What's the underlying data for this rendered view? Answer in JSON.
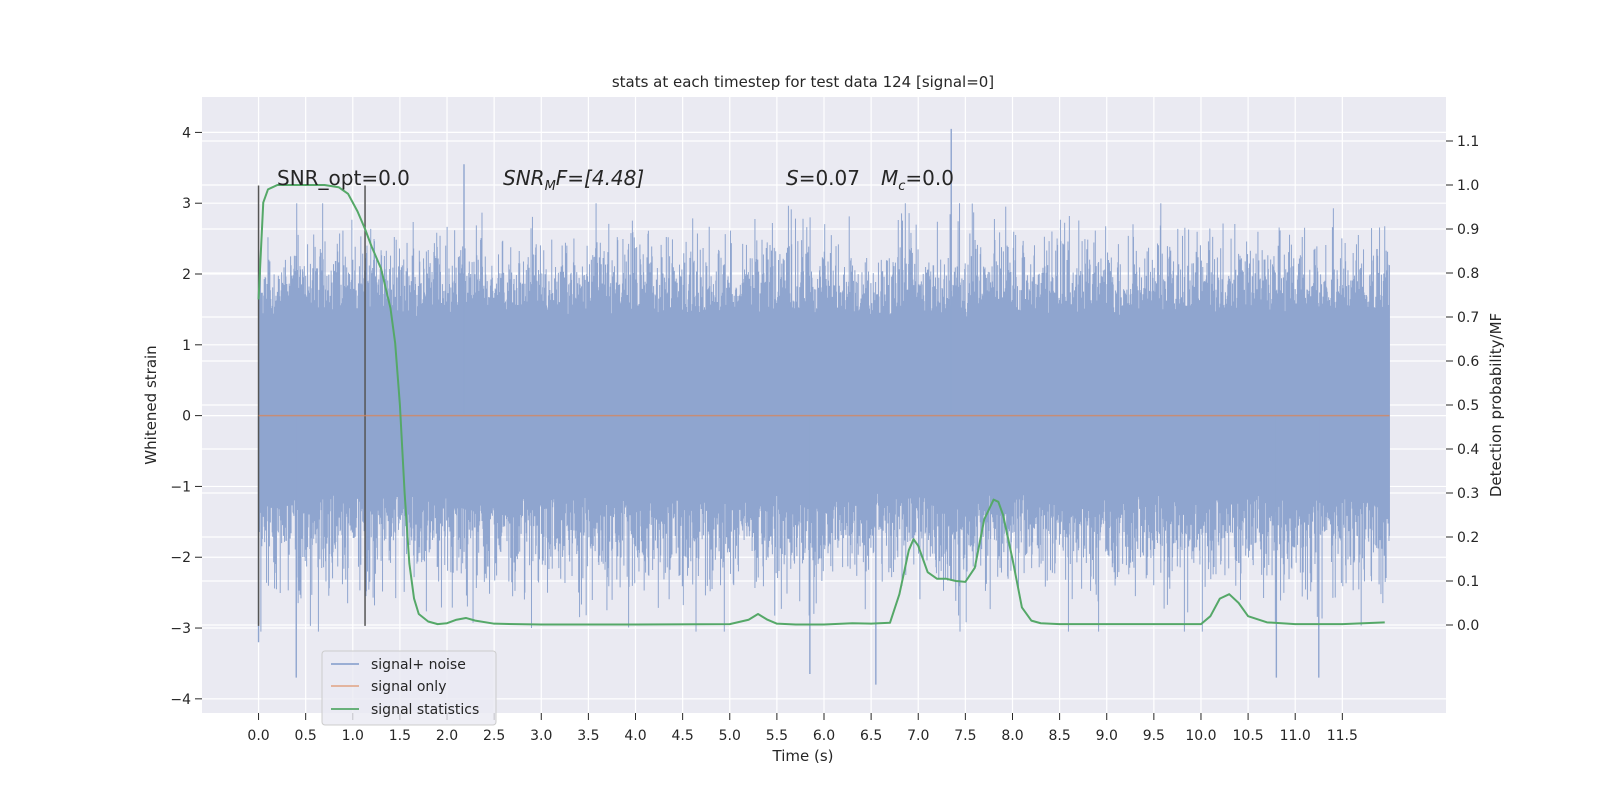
{
  "chart_data": {
    "type": "line",
    "title": "stats at each timestep for test data 124 [signal=0]",
    "xlabel": "Time (s)",
    "ylabel": "Whitened strain",
    "ylabel_right": "Detection probability/MF",
    "xlim": [
      -0.6,
      12.6
    ],
    "ylim": [
      -4.2,
      4.5
    ],
    "ylim_right": [
      -0.2,
      1.2
    ],
    "x_ticks": [
      0.0,
      0.5,
      1.0,
      1.5,
      2.0,
      2.5,
      3.0,
      3.5,
      4.0,
      4.5,
      5.0,
      5.5,
      6.0,
      6.5,
      7.0,
      7.5,
      8.0,
      8.5,
      9.0,
      9.5,
      10.0,
      10.5,
      11.0,
      11.5
    ],
    "x_tick_labels": [
      "0.0",
      "0.5",
      "1.0",
      "1.5",
      "2.0",
      "2.5",
      "3.0",
      "3.5",
      "4.0",
      "4.5",
      "5.0",
      "5.5",
      "6.0",
      "6.5",
      "7.0",
      "7.5",
      "8.0",
      "8.5",
      "9.0",
      "9.5",
      "10.0",
      "10.5",
      "11.0",
      "11.5"
    ],
    "y_ticks": [
      4,
      3,
      2,
      1,
      0,
      -1,
      -2,
      -3,
      -4
    ],
    "y_tick_labels": [
      "4",
      "3",
      "2",
      "1",
      "0",
      "−1",
      "−2",
      "−3",
      "−4"
    ],
    "y_right_ticks": [
      1.1,
      1.0,
      0.9,
      0.8,
      0.7,
      0.6,
      0.5,
      0.4,
      0.3,
      0.2,
      0.1,
      0.0
    ],
    "y_right_tick_labels": [
      "1.1",
      "1.0",
      "0.9",
      "0.8",
      "0.7",
      "0.6",
      "0.5",
      "0.4",
      "0.3",
      "0.2",
      "0.1",
      "0.0"
    ],
    "grid": true,
    "legend_position": "lower-left",
    "annotations": {
      "snr_opt": "SNR_opt=0.0",
      "snr_mf_prefix": "SNR",
      "snr_mf_sub": "M",
      "snr_mf_suffix": "F=[4.48]",
      "s_prefix": "S",
      "s_value": "=0.07",
      "mc_prefix": "M",
      "mc_sub": "c",
      "mc_value": "=0.0"
    },
    "window_markers": [
      0.0,
      1.13
    ],
    "series": [
      {
        "name": "signal+ noise",
        "color": "#8fa5cf",
        "axis": "left",
        "kind": "noise",
        "x_range": [
          0.0,
          12.0
        ],
        "band_typical": [
          -1.1,
          1.4
        ],
        "notable_peaks": [
          {
            "x": 0.0,
            "y": -3.2
          },
          {
            "x": 0.4,
            "y": -3.7
          },
          {
            "x": 2.18,
            "y": 3.55
          },
          {
            "x": 5.85,
            "y": -3.65
          },
          {
            "x": 6.55,
            "y": -3.8
          },
          {
            "x": 7.35,
            "y": 4.05
          },
          {
            "x": 10.8,
            "y": -3.7
          },
          {
            "x": 11.25,
            "y": -3.7
          }
        ]
      },
      {
        "name": "signal only",
        "color": "#dd8452",
        "axis": "left",
        "x": [
          0.0,
          12.0
        ],
        "y": [
          0.0,
          0.0
        ]
      },
      {
        "name": "signal statistics",
        "color": "#55a868",
        "axis": "right",
        "x": [
          0.0,
          0.05,
          0.1,
          0.15,
          0.2,
          0.3,
          0.5,
          0.7,
          0.85,
          0.95,
          1.05,
          1.13,
          1.2,
          1.3,
          1.4,
          1.45,
          1.5,
          1.55,
          1.6,
          1.65,
          1.7,
          1.8,
          1.9,
          2.0,
          2.1,
          2.2,
          2.3,
          2.5,
          3.0,
          4.0,
          5.0,
          5.2,
          5.3,
          5.4,
          5.5,
          5.7,
          6.0,
          6.3,
          6.5,
          6.7,
          6.8,
          6.9,
          6.95,
          7.0,
          7.05,
          7.1,
          7.2,
          7.3,
          7.4,
          7.5,
          7.6,
          7.7,
          7.8,
          7.85,
          7.9,
          8.0,
          8.1,
          8.2,
          8.3,
          8.5,
          9.0,
          9.5,
          10.0,
          10.1,
          10.2,
          10.3,
          10.4,
          10.5,
          10.7,
          11.0,
          11.5,
          11.95
        ],
        "y": [
          0.74,
          0.96,
          0.99,
          0.995,
          1.0,
          1.0,
          1.0,
          1.0,
          0.995,
          0.98,
          0.94,
          0.9,
          0.86,
          0.81,
          0.72,
          0.64,
          0.5,
          0.3,
          0.14,
          0.06,
          0.025,
          0.008,
          0.002,
          0.004,
          0.012,
          0.016,
          0.01,
          0.003,
          0.001,
          0.001,
          0.002,
          0.012,
          0.025,
          0.012,
          0.003,
          0.001,
          0.001,
          0.004,
          0.003,
          0.005,
          0.07,
          0.17,
          0.195,
          0.18,
          0.15,
          0.12,
          0.105,
          0.105,
          0.1,
          0.098,
          0.13,
          0.24,
          0.285,
          0.28,
          0.25,
          0.15,
          0.04,
          0.01,
          0.004,
          0.002,
          0.002,
          0.002,
          0.002,
          0.02,
          0.06,
          0.07,
          0.05,
          0.02,
          0.006,
          0.002,
          0.002,
          0.006
        ]
      }
    ]
  }
}
